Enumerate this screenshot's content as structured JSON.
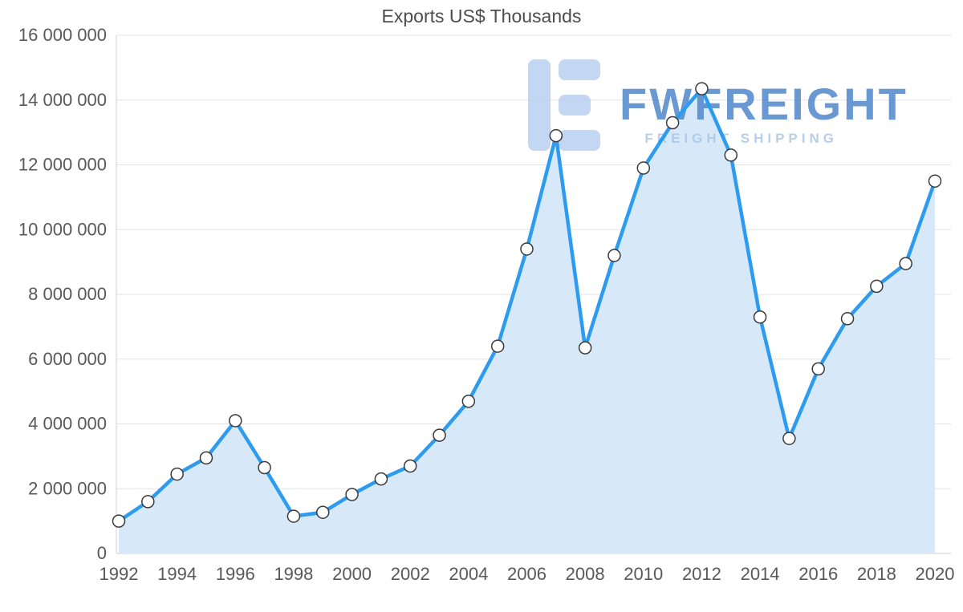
{
  "chart_data": {
    "type": "area",
    "title": "Exports US$ Thousands",
    "x": [
      1992,
      1993,
      1994,
      1995,
      1996,
      1997,
      1998,
      1999,
      2000,
      2001,
      2002,
      2003,
      2004,
      2005,
      2006,
      2007,
      2008,
      2009,
      2010,
      2011,
      2012,
      2013,
      2014,
      2015,
      2016,
      2017,
      2018,
      2019,
      2020
    ],
    "values": [
      1000000,
      1600000,
      2450000,
      2950000,
      4100000,
      2650000,
      1150000,
      1270000,
      1820000,
      2300000,
      2700000,
      3650000,
      4700000,
      6400000,
      9400000,
      12900000,
      6350000,
      9200000,
      11900000,
      13300000,
      14350000,
      12300000,
      7300000,
      3550000,
      5700000,
      7250000,
      8250000,
      8950000,
      11500000
    ],
    "ylim": [
      0,
      16000000
    ],
    "yticks": [
      {
        "value": 0,
        "label": "0"
      },
      {
        "value": 2000000,
        "label": "2 000 000"
      },
      {
        "value": 4000000,
        "label": "4 000 000"
      },
      {
        "value": 6000000,
        "label": "6 000 000"
      },
      {
        "value": 8000000,
        "label": "8 000 000"
      },
      {
        "value": 10000000,
        "label": "10 000 000"
      },
      {
        "value": 12000000,
        "label": "12 000 000"
      },
      {
        "value": 14000000,
        "label": "14 000 000"
      },
      {
        "value": 16000000,
        "label": "16 000 000"
      }
    ],
    "xticks": [
      "1992",
      "1994",
      "1996",
      "1998",
      "2000",
      "2002",
      "2004",
      "2006",
      "2008",
      "2010",
      "2012",
      "2014",
      "2016",
      "2018",
      "2020"
    ],
    "grid": "horizontal",
    "legend": "none",
    "line_color": "#2d9bf0",
    "area_color": "#d7e9f9",
    "grid_color": "#e3e3e3",
    "axis_color": "#cfcfcf",
    "marker_fill": "#ffffff",
    "marker_stroke": "#3a3a3a"
  },
  "watermark": {
    "brand": "FWFREIGHT",
    "tagline": "FREIGHT SHIPPING",
    "logo_color": "#b9d1f2"
  }
}
